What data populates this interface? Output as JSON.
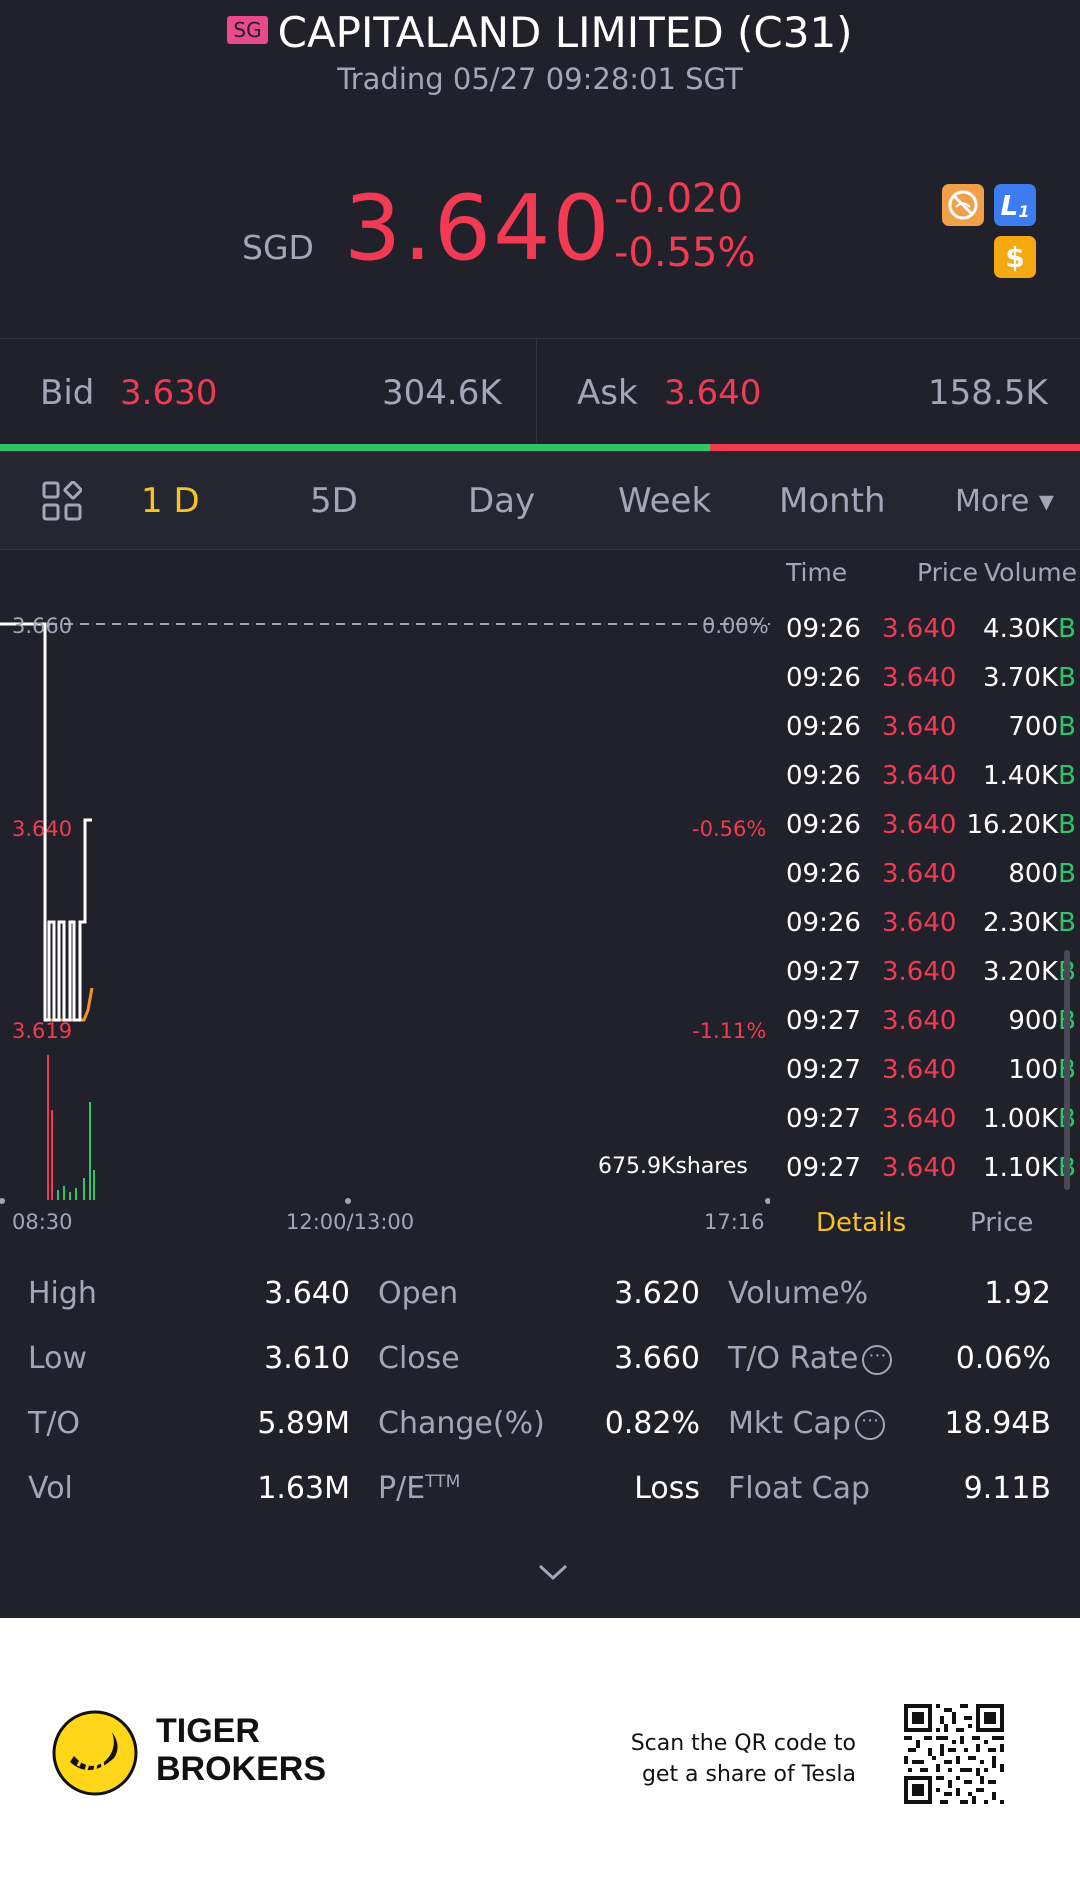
{
  "header": {
    "market_badge": "SG",
    "title": "CAPITALAND LIMITED (C31)",
    "status": "Trading 05/27 09:28:01 SGT",
    "currency": "SGD",
    "price": "3.640",
    "change": "-0.020",
    "change_pct": "-0.55%",
    "badges": [
      "no-short-icon",
      "level1-icon",
      "dollar-icon"
    ]
  },
  "bidask": {
    "bid_label": "Bid",
    "bid_price": "3.630",
    "bid_volume": "304.6K",
    "ask_label": "Ask",
    "ask_price": "3.640",
    "ask_volume": "158.5K",
    "bid_ratio": 0.657
  },
  "tabs": [
    {
      "label": "1 D",
      "active": true
    },
    {
      "label": "5D"
    },
    {
      "label": "Day"
    },
    {
      "label": "Week"
    },
    {
      "label": "Month"
    },
    {
      "label": "More ▾"
    }
  ],
  "chart": {
    "price_labels": [
      "3.660",
      "3.640",
      "3.619"
    ],
    "pct_labels": [
      "0.00%",
      "-0.56%",
      "-1.11%"
    ],
    "volume_label": "675.9Kshares",
    "time_labels": [
      "08:30",
      "12:00/13:00",
      "17:16"
    ]
  },
  "trades": {
    "headers": [
      "Time",
      "Price",
      "Volume"
    ],
    "rows": [
      {
        "time": "09:26",
        "price": "3.640",
        "volume": "4.30K",
        "side": "B"
      },
      {
        "time": "09:26",
        "price": "3.640",
        "volume": "3.70K",
        "side": "B"
      },
      {
        "time": "09:26",
        "price": "3.640",
        "volume": "700",
        "side": "B"
      },
      {
        "time": "09:26",
        "price": "3.640",
        "volume": "1.40K",
        "side": "B"
      },
      {
        "time": "09:26",
        "price": "3.640",
        "volume": "16.20K",
        "side": "B"
      },
      {
        "time": "09:26",
        "price": "3.640",
        "volume": "800",
        "side": "B"
      },
      {
        "time": "09:26",
        "price": "3.640",
        "volume": "2.30K",
        "side": "B"
      },
      {
        "time": "09:27",
        "price": "3.640",
        "volume": "3.20K",
        "side": "B"
      },
      {
        "time": "09:27",
        "price": "3.640",
        "volume": "900",
        "side": "B"
      },
      {
        "time": "09:27",
        "price": "3.640",
        "volume": "100",
        "side": "B"
      },
      {
        "time": "09:27",
        "price": "3.640",
        "volume": "1.00K",
        "side": "B"
      },
      {
        "time": "09:27",
        "price": "3.640",
        "volume": "1.10K",
        "side": "B"
      }
    ],
    "tab_details": "Details",
    "tab_price": "Price"
  },
  "stats": {
    "high_l": "High",
    "high_v": "3.640",
    "low_l": "Low",
    "low_v": "3.610",
    "to_l": "T/O",
    "to_v": "5.89M",
    "vol_l": "Vol",
    "vol_v": "1.63M",
    "open_l": "Open",
    "open_v": "3.620",
    "close_l": "Close",
    "close_v": "3.660",
    "chg_l": "Change(%)",
    "chg_v": "0.82%",
    "pe_l": "P/E",
    "pe_sup": "TTM",
    "pe_v": "Loss",
    "volpct_l": "Volume%",
    "volpct_v": "1.92",
    "torate_l": "T/O Rate",
    "torate_v": "0.06%",
    "mktcap_l": "Mkt Cap",
    "mktcap_v": "18.94B",
    "float_l": "Float Cap",
    "float_v": "9.11B"
  },
  "footer": {
    "brand_line1": "TIGER",
    "brand_line2": "BROKERS",
    "promo_line1": "Scan the QR code to",
    "promo_line2": "get a share of Tesla"
  },
  "colors": {
    "background": "#21212b",
    "up": "#2ec56a",
    "down": "#f23a52",
    "active_tab": "#f5c324",
    "muted": "#a2a6b6"
  }
}
